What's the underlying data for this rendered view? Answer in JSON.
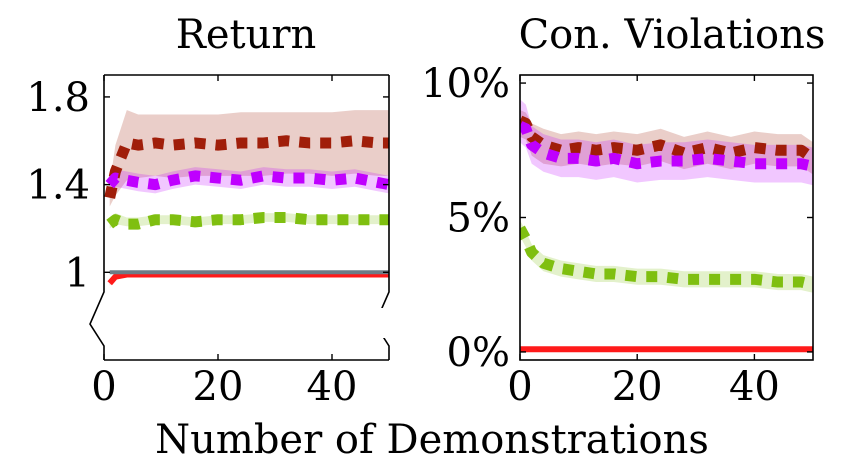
{
  "xlabel": "Number of Demonstrations",
  "chart_data": [
    {
      "type": "line",
      "title": "Return",
      "xlabel": "",
      "ylabel": "",
      "xlim": [
        0,
        50
      ],
      "ylim": [
        0.6,
        1.9
      ],
      "x_ticks": [
        0,
        20,
        40
      ],
      "x_tick_labels": [
        "0",
        "20",
        "40"
      ],
      "y_ticks": [
        1.0,
        1.4,
        1.8
      ],
      "y_tick_labels": [
        "1",
        "1.4",
        "1.8"
      ],
      "axis_break": true,
      "grid": false,
      "legend": "none",
      "x": [
        1,
        2,
        4,
        6,
        9,
        12,
        16,
        20,
        24,
        28,
        32,
        36,
        40,
        44,
        48,
        50
      ],
      "series": [
        {
          "color": "#a01e0a",
          "style": "dotted",
          "values": [
            1.34,
            1.46,
            1.59,
            1.58,
            1.59,
            1.58,
            1.59,
            1.58,
            1.59,
            1.59,
            1.6,
            1.59,
            1.59,
            1.6,
            1.59,
            1.59
          ],
          "band": [
            [
              1.3,
              1.4
            ],
            [
              1.35,
              1.58
            ],
            [
              1.42,
              1.74
            ],
            [
              1.43,
              1.72
            ],
            [
              1.44,
              1.72
            ],
            [
              1.43,
              1.72
            ],
            [
              1.44,
              1.72
            ],
            [
              1.44,
              1.72
            ],
            [
              1.44,
              1.73
            ],
            [
              1.44,
              1.73
            ],
            [
              1.45,
              1.73
            ],
            [
              1.45,
              1.73
            ],
            [
              1.44,
              1.73
            ],
            [
              1.45,
              1.74
            ],
            [
              1.44,
              1.74
            ],
            [
              1.44,
              1.74
            ]
          ]
        },
        {
          "color": "#bf00ff",
          "style": "dotted",
          "values": [
            1.4,
            1.43,
            1.42,
            1.41,
            1.4,
            1.42,
            1.44,
            1.43,
            1.42,
            1.44,
            1.43,
            1.43,
            1.42,
            1.43,
            1.41,
            1.4
          ],
          "band": [
            [
              1.36,
              1.44
            ],
            [
              1.39,
              1.47
            ],
            [
              1.38,
              1.46
            ],
            [
              1.37,
              1.45
            ],
            [
              1.36,
              1.44
            ],
            [
              1.38,
              1.46
            ],
            [
              1.4,
              1.48
            ],
            [
              1.39,
              1.47
            ],
            [
              1.38,
              1.46
            ],
            [
              1.4,
              1.48
            ],
            [
              1.39,
              1.47
            ],
            [
              1.39,
              1.47
            ],
            [
              1.38,
              1.46
            ],
            [
              1.39,
              1.47
            ],
            [
              1.37,
              1.45
            ],
            [
              1.36,
              1.44
            ]
          ]
        },
        {
          "color": "#7fbf10",
          "style": "dotted",
          "values": [
            1.22,
            1.24,
            1.22,
            1.22,
            1.24,
            1.24,
            1.23,
            1.24,
            1.24,
            1.25,
            1.25,
            1.24,
            1.24,
            1.24,
            1.24,
            1.24
          ],
          "band": [
            [
              1.2,
              1.25
            ],
            [
              1.22,
              1.27
            ],
            [
              1.21,
              1.25
            ],
            [
              1.21,
              1.25
            ],
            [
              1.22,
              1.26
            ],
            [
              1.22,
              1.26
            ],
            [
              1.21,
              1.25
            ],
            [
              1.22,
              1.26
            ],
            [
              1.22,
              1.26
            ],
            [
              1.23,
              1.27
            ],
            [
              1.23,
              1.27
            ],
            [
              1.22,
              1.26
            ],
            [
              1.22,
              1.26
            ],
            [
              1.22,
              1.26
            ],
            [
              1.22,
              1.26
            ],
            [
              1.22,
              1.26
            ]
          ]
        },
        {
          "color": "#ff1a1a",
          "style": "solid",
          "values": [
            0.95,
            0.98,
            0.99,
            0.99,
            0.99,
            0.99,
            0.99,
            0.99,
            0.99,
            0.99,
            0.99,
            0.99,
            0.99,
            0.99,
            0.99,
            0.99
          ],
          "band": [
            [
              0.94,
              0.97
            ],
            [
              0.97,
              0.99
            ],
            [
              0.98,
              1.0
            ],
            [
              0.98,
              1.0
            ],
            [
              0.98,
              1.0
            ],
            [
              0.98,
              1.0
            ],
            [
              0.98,
              1.0
            ],
            [
              0.98,
              1.0
            ],
            [
              0.98,
              1.0
            ],
            [
              0.98,
              1.0
            ],
            [
              0.98,
              1.0
            ],
            [
              0.98,
              1.0
            ],
            [
              0.98,
              1.0
            ],
            [
              0.98,
              1.0
            ],
            [
              0.98,
              1.0
            ],
            [
              0.98,
              1.0
            ]
          ]
        },
        {
          "color": "#6e7b86",
          "style": "solid",
          "values": [
            1.0,
            1.0,
            1.0,
            1.0,
            1.0,
            1.0,
            1.0,
            1.0,
            1.0,
            1.0,
            1.0,
            1.0,
            1.0,
            1.0,
            1.0,
            1.0
          ],
          "band": null
        }
      ]
    },
    {
      "type": "line",
      "title": "Con. Violations",
      "xlabel": "",
      "ylabel": "",
      "xlim": [
        0,
        50
      ],
      "ylim": [
        -0.3,
        10.3
      ],
      "x_ticks": [
        0,
        20,
        40
      ],
      "x_tick_labels": [
        "0",
        "20",
        "40"
      ],
      "y_ticks": [
        0,
        5,
        10
      ],
      "y_tick_labels": [
        "0%",
        "5%",
        "10%"
      ],
      "axis_break": false,
      "grid": false,
      "legend": "none",
      "x": [
        0,
        1,
        2,
        4,
        7,
        10,
        13,
        16,
        20,
        24,
        28,
        32,
        36,
        40,
        44,
        48,
        50
      ],
      "series": [
        {
          "color": "#a01e0a",
          "style": "dotted",
          "values": [
            8.6,
            8.5,
            8.0,
            7.7,
            7.5,
            7.6,
            7.5,
            7.6,
            7.5,
            7.7,
            7.4,
            7.6,
            7.4,
            7.6,
            7.5,
            7.5,
            7.2
          ],
          "band": [
            [
              8.0,
              9.0
            ],
            [
              7.9,
              8.9
            ],
            [
              7.3,
              8.5
            ],
            [
              7.0,
              8.3
            ],
            [
              6.9,
              8.1
            ],
            [
              7.0,
              8.2
            ],
            [
              6.9,
              8.1
            ],
            [
              7.0,
              8.2
            ],
            [
              6.9,
              8.1
            ],
            [
              7.1,
              8.3
            ],
            [
              6.8,
              8.0
            ],
            [
              7.0,
              8.2
            ],
            [
              6.8,
              8.0
            ],
            [
              7.0,
              8.2
            ],
            [
              6.9,
              8.1
            ],
            [
              6.9,
              8.1
            ],
            [
              6.6,
              7.8
            ]
          ]
        },
        {
          "color": "#bf00ff",
          "style": "dotted",
          "values": [
            8.4,
            8.3,
            7.7,
            7.4,
            7.2,
            7.2,
            7.1,
            7.2,
            7.0,
            7.1,
            7.1,
            7.2,
            7.1,
            7.0,
            7.0,
            7.0,
            6.9
          ],
          "band": [
            [
              7.8,
              9.4
            ],
            [
              7.6,
              9.2
            ],
            [
              7.0,
              8.4
            ],
            [
              6.7,
              8.1
            ],
            [
              6.5,
              7.9
            ],
            [
              6.5,
              7.9
            ],
            [
              6.4,
              7.8
            ],
            [
              6.5,
              7.9
            ],
            [
              6.3,
              7.7
            ],
            [
              6.4,
              7.8
            ],
            [
              6.4,
              7.8
            ],
            [
              6.5,
              7.9
            ],
            [
              6.4,
              7.8
            ],
            [
              6.3,
              7.7
            ],
            [
              6.3,
              7.7
            ],
            [
              6.3,
              7.7
            ],
            [
              6.2,
              7.6
            ]
          ]
        },
        {
          "color": "#7fbf10",
          "style": "dotted",
          "values": [
            4.6,
            4.2,
            3.7,
            3.3,
            3.1,
            3.0,
            2.9,
            2.9,
            2.8,
            2.8,
            2.7,
            2.7,
            2.7,
            2.7,
            2.6,
            2.6,
            2.5
          ],
          "band": [
            [
              4.3,
              4.9
            ],
            [
              3.9,
              4.5
            ],
            [
              3.4,
              4.0
            ],
            [
              3.0,
              3.6
            ],
            [
              2.8,
              3.4
            ],
            [
              2.7,
              3.3
            ],
            [
              2.6,
              3.2
            ],
            [
              2.6,
              3.2
            ],
            [
              2.5,
              3.1
            ],
            [
              2.5,
              3.1
            ],
            [
              2.4,
              3.0
            ],
            [
              2.4,
              3.0
            ],
            [
              2.4,
              3.0
            ],
            [
              2.4,
              3.0
            ],
            [
              2.3,
              2.9
            ],
            [
              2.3,
              2.9
            ],
            [
              2.2,
              2.8
            ]
          ]
        },
        {
          "color": "#ff1a1a",
          "style": "solid",
          "values": [
            0.1,
            0.1,
            0.1,
            0.1,
            0.1,
            0.1,
            0.1,
            0.1,
            0.1,
            0.1,
            0.1,
            0.1,
            0.1,
            0.1,
            0.1,
            0.1,
            0.1
          ],
          "band": null
        }
      ]
    }
  ]
}
